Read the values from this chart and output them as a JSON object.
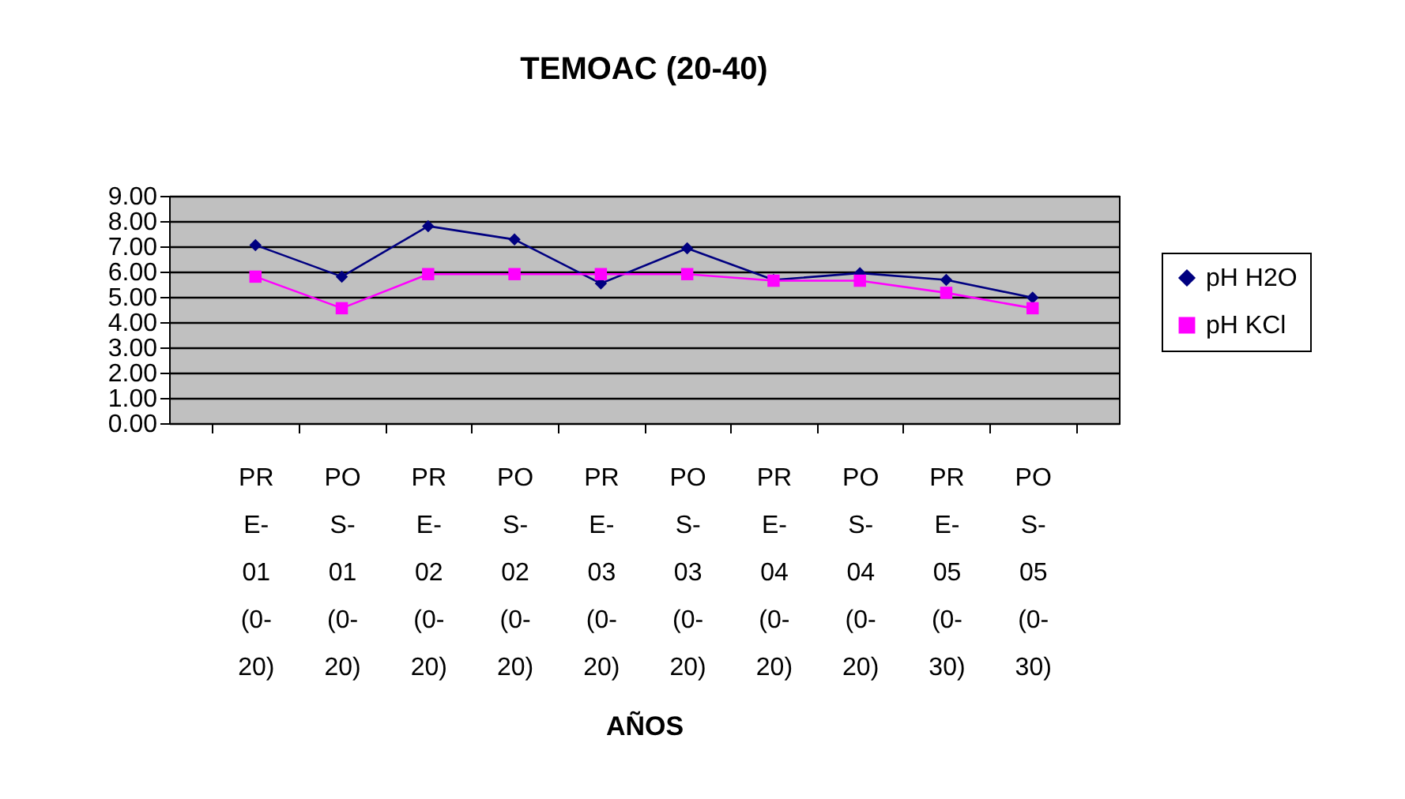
{
  "chart_data": {
    "type": "line",
    "title": "TEMOAC (20-40)",
    "xlabel": "AÑOS",
    "categories": [
      "PRE-01 (0-20)",
      "POS-01 (0-20)",
      "PRE-02 (0-20)",
      "POS-02 (0-20)",
      "PRE-03 (0-20)",
      "POS-03 (0-20)",
      "PRE-04 (0-20)",
      "POS-04 (0-20)",
      "PRE-05 (0-30)",
      "POS-05 (0-30)"
    ],
    "series": [
      {
        "name": "pH H2O",
        "color": "#000080",
        "marker": "diamond",
        "values": [
          7.05,
          5.8,
          7.8,
          7.27,
          5.53,
          6.92,
          5.67,
          5.94,
          5.67,
          4.97
        ]
      },
      {
        "name": "pH KCl",
        "color": "#ff00ff",
        "marker": "square",
        "values": [
          5.8,
          4.55,
          5.9,
          5.9,
          5.9,
          5.9,
          5.64,
          5.64,
          5.16,
          4.55
        ]
      }
    ],
    "ylim": [
      0,
      9
    ],
    "yticks": [
      {
        "value": 0,
        "label": "0.00"
      },
      {
        "value": 1,
        "label": "1.00"
      },
      {
        "value": 2,
        "label": "2.00"
      },
      {
        "value": 3,
        "label": "3.00"
      },
      {
        "value": 4,
        "label": "4.00"
      },
      {
        "value": 5,
        "label": "5.00"
      },
      {
        "value": 6,
        "label": "6.00"
      },
      {
        "value": 7,
        "label": "7.00"
      },
      {
        "value": 8,
        "label": "8.00"
      },
      {
        "value": 9,
        "label": "9.00"
      }
    ],
    "grid": "y",
    "legend": "right"
  }
}
